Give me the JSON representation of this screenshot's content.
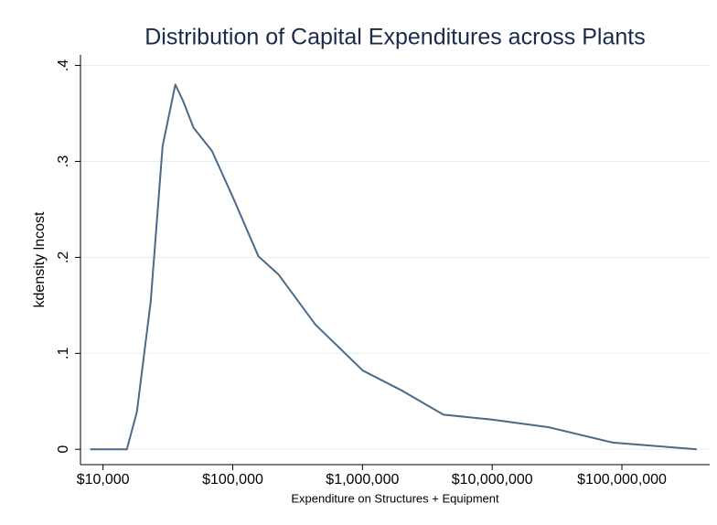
{
  "chart_data": {
    "type": "line",
    "title": "Distribution of Capital Expenditures across Plants",
    "xlabel": "Expenditure on Structures + Equipment",
    "ylabel": "kdensity lncost",
    "xscale": "log",
    "grid": true,
    "color": "#4b6a88",
    "x": [
      7960,
      15250,
      18250,
      23300,
      28800,
      36100,
      41100,
      49900,
      69100,
      100000,
      157700,
      225800,
      433000,
      1007000,
      2026000,
      4210000,
      9950000,
      27300000,
      84900000,
      378000000
    ],
    "values": [
      0,
      0,
      0.039,
      0.154,
      0.316,
      0.38,
      0.364,
      0.335,
      0.311,
      0.263,
      0.201,
      0.182,
      0.13,
      0.082,
      0.061,
      0.036,
      0.031,
      0.023,
      0.007,
      0
    ],
    "xlim": [
      6700,
      475000000
    ],
    "xticks": [
      {
        "value": 10000,
        "label": "$10,000"
      },
      {
        "value": 100000,
        "label": "$100,000"
      },
      {
        "value": 1000000,
        "label": "$1,000,000"
      },
      {
        "value": 10000000,
        "label": "$10,000,000"
      },
      {
        "value": 100000000,
        "label": "$100,000,000"
      }
    ],
    "ylim": [
      -0.016,
      0.411
    ],
    "yticks": [
      0,
      {
        "value": 0.1,
        "label": ".1"
      },
      {
        "value": 0.2,
        "label": ".2"
      },
      {
        "value": 0.3,
        "label": ".3"
      },
      {
        "value": 0.4,
        "label": ".4"
      }
    ]
  }
}
